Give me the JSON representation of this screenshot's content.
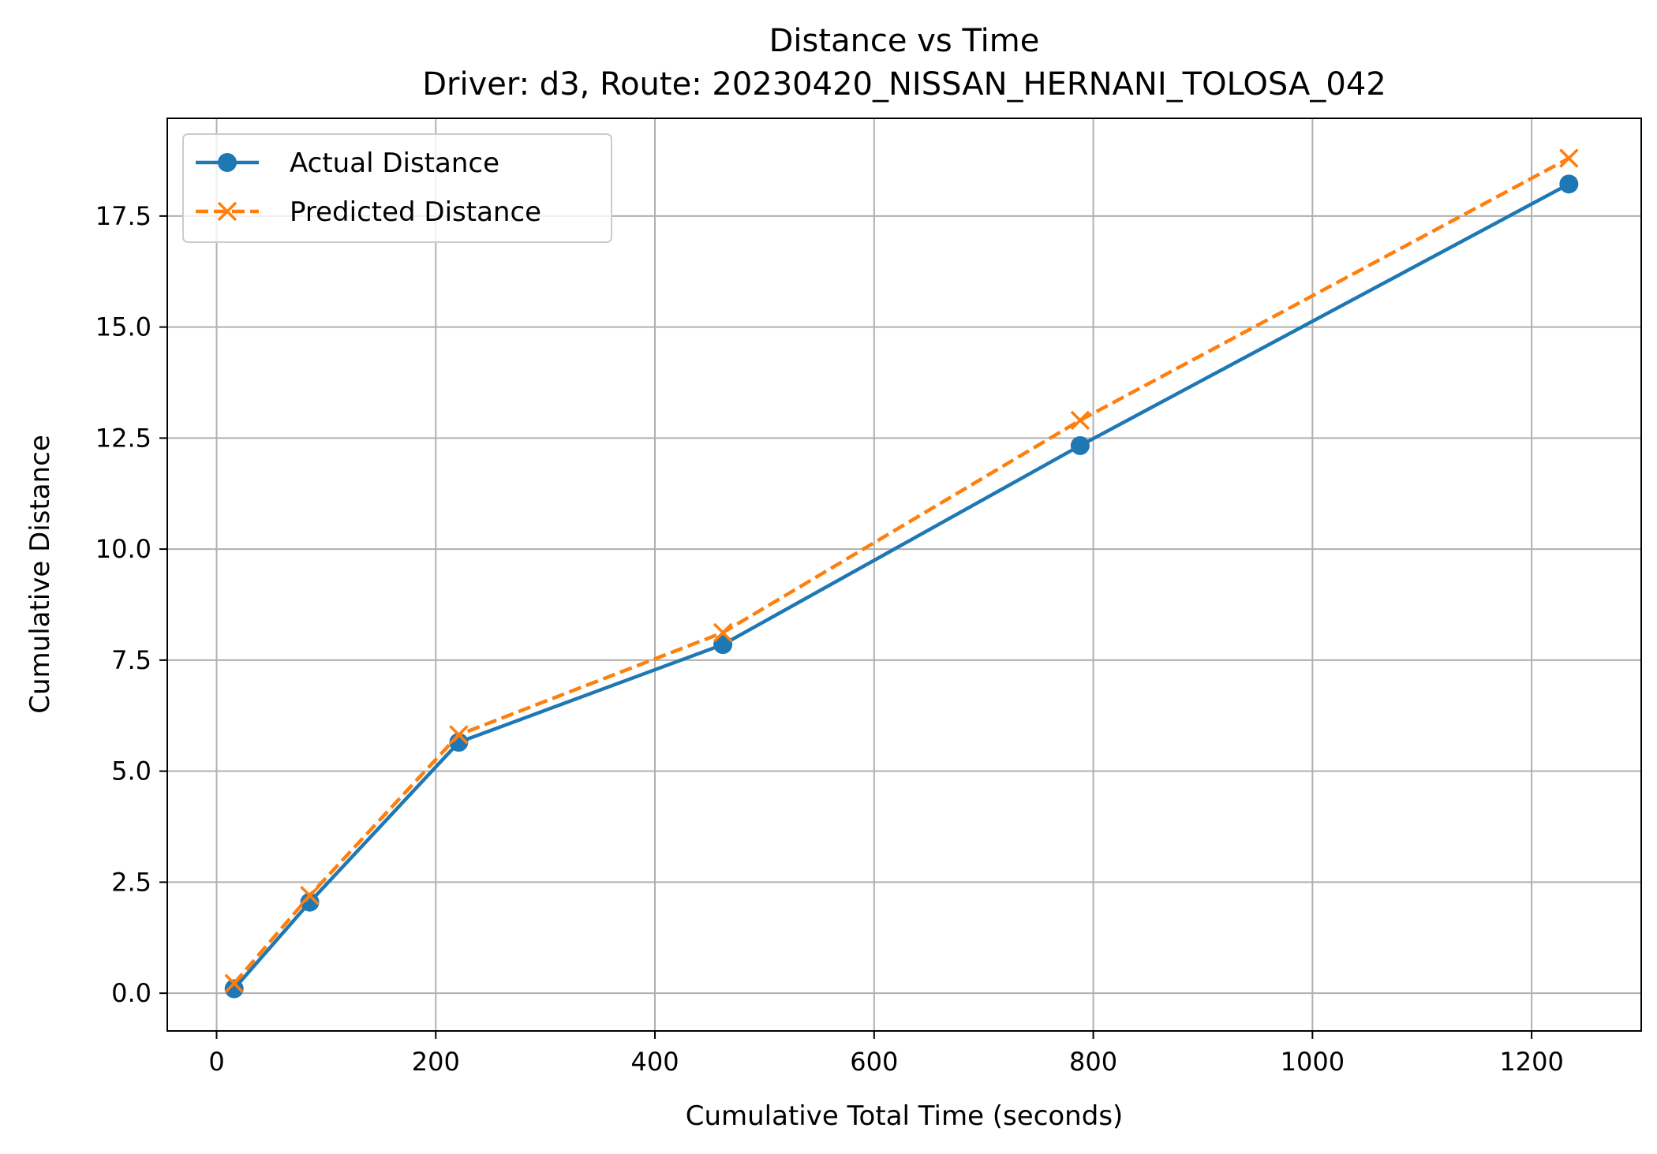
{
  "chart_data": {
    "type": "line",
    "title": "Distance vs Time",
    "subtitle": "Driver: d3, Route: 20230420_NISSAN_HERNANI_TOLOSA_042",
    "xlabel": "Cumulative Total Time (seconds)",
    "ylabel": "Cumulative Distance",
    "xlim": [
      -45,
      1300
    ],
    "ylim": [
      -0.85,
      19.7
    ],
    "xticks": [
      0,
      200,
      400,
      600,
      800,
      1000,
      1200
    ],
    "yticks": [
      0.0,
      2.5,
      5.0,
      7.5,
      10.0,
      12.5,
      15.0,
      17.5
    ],
    "xtick_labels": [
      "0",
      "200",
      "400",
      "600",
      "800",
      "1000",
      "1200"
    ],
    "ytick_labels": [
      "0.0",
      "2.5",
      "5.0",
      "7.5",
      "10.0",
      "12.5",
      "15.0",
      "17.5"
    ],
    "grid": true,
    "legend_position": "top-left",
    "x": [
      16,
      85,
      221,
      462,
      788,
      1234
    ],
    "series": [
      {
        "name": "Actual Distance",
        "values": [
          0.1,
          2.05,
          5.65,
          7.85,
          12.33,
          18.22
        ],
        "color": "#1f77b4",
        "linestyle": "solid",
        "marker": "circle"
      },
      {
        "name": "Predicted Distance",
        "values": [
          0.22,
          2.2,
          5.82,
          8.12,
          12.9,
          18.8
        ],
        "color": "#ff7f0e",
        "linestyle": "dashed",
        "marker": "x"
      }
    ]
  }
}
